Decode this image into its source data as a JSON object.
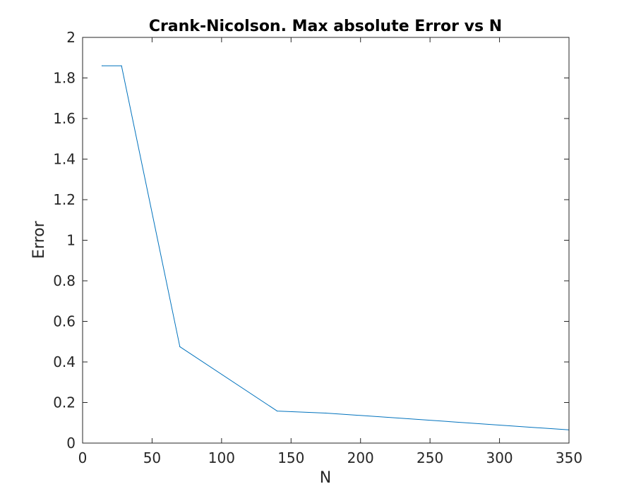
{
  "chart_data": {
    "type": "line",
    "title": "Crank-Nicolson. Max absolute Error vs N",
    "xlabel": "N",
    "ylabel": "Error",
    "xlim": [
      0,
      350
    ],
    "ylim": [
      0,
      2
    ],
    "xticks": [
      0,
      50,
      100,
      150,
      200,
      250,
      300,
      350
    ],
    "yticks": [
      0,
      0.2,
      0.4,
      0.6,
      0.8,
      1,
      1.2,
      1.4,
      1.6,
      1.8,
      2
    ],
    "xtick_labels": [
      "0",
      "50",
      "100",
      "150",
      "200",
      "250",
      "300",
      "350"
    ],
    "ytick_labels": [
      "0",
      "0.2",
      "0.4",
      "0.6",
      "0.8",
      "1",
      "1.2",
      "1.4",
      "1.6",
      "1.8",
      "2"
    ],
    "grid": false,
    "series": [
      {
        "color": "#0072BD",
        "x": [
          14,
          28,
          70,
          140,
          175,
          350
        ],
        "y": [
          1.86,
          1.86,
          0.475,
          0.158,
          0.148,
          0.065
        ]
      }
    ]
  }
}
